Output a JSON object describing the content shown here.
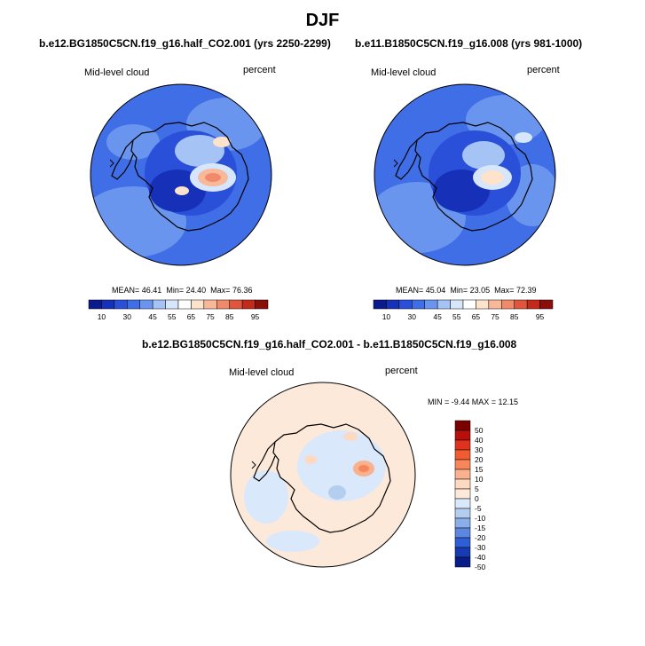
{
  "figure": {
    "title": "DJF"
  },
  "panels": [
    {
      "title": "b.e12.BG1850C5CN.f19_g16.half_CO2.001 (yrs 2250-2299)",
      "left_label": "Mid-level cloud",
      "right_label": "percent",
      "stats": {
        "mean_label": "MEAN=",
        "mean": "46.41",
        "min_label": "Min=",
        "min": "24.40",
        "max_label": "Max=",
        "max": "76.36"
      }
    },
    {
      "title": "b.e11.B1850C5CN.f19_g16.008 (yrs 981-1000)",
      "left_label": "Mid-level cloud",
      "right_label": "percent",
      "stats": {
        "mean_label": "MEAN=",
        "mean": "45.04",
        "min_label": "Min=",
        "min": "23.05",
        "max_label": "Max=",
        "max": "72.39"
      }
    },
    {
      "title": "b.e12.BG1850C5CN.f19_g16.half_CO2.001 - b.e11.B1850C5CN.f19_g16.008",
      "left_label": "Mid-level cloud",
      "right_label": "percent",
      "stats_text": "MIN =  -9.44 MAX =  12.15"
    }
  ],
  "colorbar_abs": {
    "labels": [
      "10",
      "30",
      "45",
      "55",
      "65",
      "75",
      "85",
      "95"
    ],
    "colors": [
      "#0a1a8c",
      "#1730b8",
      "#2a4fd8",
      "#3f6ee6",
      "#6a95ee",
      "#a5c3f5",
      "#d6e6fb",
      "#ffffff",
      "#fde2cc",
      "#f8b89a",
      "#ef8a6a",
      "#e0553e",
      "#c42a1c",
      "#8a0f0a"
    ]
  },
  "colorbar_diff": {
    "labels": [
      "50",
      "40",
      "30",
      "20",
      "15",
      "10",
      "5",
      "0",
      "-5",
      "-10",
      "-15",
      "-20",
      "-30",
      "-40",
      "-50"
    ],
    "colors": [
      "#7a0000",
      "#b80f0a",
      "#e0301e",
      "#f05c2f",
      "#f7875a",
      "#fab28e",
      "#fdd9c2",
      "#fde9d9",
      "#d9e8fb",
      "#b3ceef",
      "#8aaee8",
      "#5c87e0",
      "#2f5fd6",
      "#173bb0",
      "#091d8a"
    ]
  }
}
